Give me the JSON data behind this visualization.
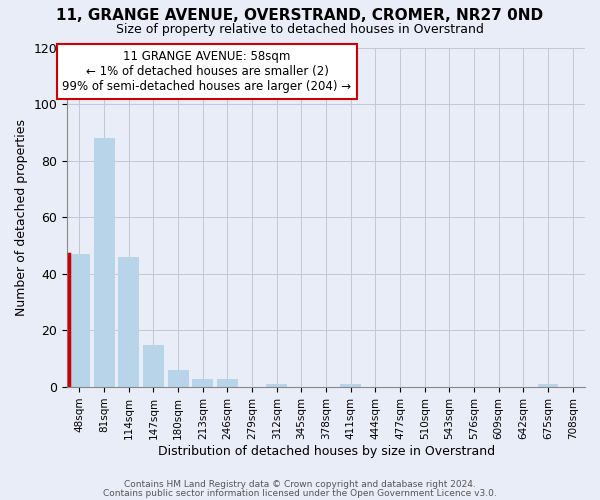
{
  "title": "11, GRANGE AVENUE, OVERSTRAND, CROMER, NR27 0ND",
  "subtitle": "Size of property relative to detached houses in Overstrand",
  "xlabel": "Distribution of detached houses by size in Overstrand",
  "ylabel": "Number of detached properties",
  "bin_labels": [
    "48sqm",
    "81sqm",
    "114sqm",
    "147sqm",
    "180sqm",
    "213sqm",
    "246sqm",
    "279sqm",
    "312sqm",
    "345sqm",
    "378sqm",
    "411sqm",
    "444sqm",
    "477sqm",
    "510sqm",
    "543sqm",
    "576sqm",
    "609sqm",
    "642sqm",
    "675sqm",
    "708sqm"
  ],
  "bar_heights": [
    47,
    88,
    46,
    15,
    6,
    3,
    3,
    0,
    1,
    0,
    0,
    1,
    0,
    0,
    0,
    0,
    0,
    0,
    0,
    1,
    0
  ],
  "bar_color": "#b8d4e8",
  "highlight_left_edge_color": "#cc0000",
  "ylim": [
    0,
    120
  ],
  "yticks": [
    0,
    20,
    40,
    60,
    80,
    100,
    120
  ],
  "annotation_line1": "11 GRANGE AVENUE: 58sqm",
  "annotation_line2": "← 1% of detached houses are smaller (2)",
  "annotation_line3": "99% of semi-detached houses are larger (204) →",
  "footer_line1": "Contains HM Land Registry data © Crown copyright and database right 2024.",
  "footer_line2": "Contains public sector information licensed under the Open Government Licence v3.0.",
  "background_color": "#e8edf8",
  "plot_bg_color": "#e8edf8",
  "grid_color": "#c0c8d8"
}
